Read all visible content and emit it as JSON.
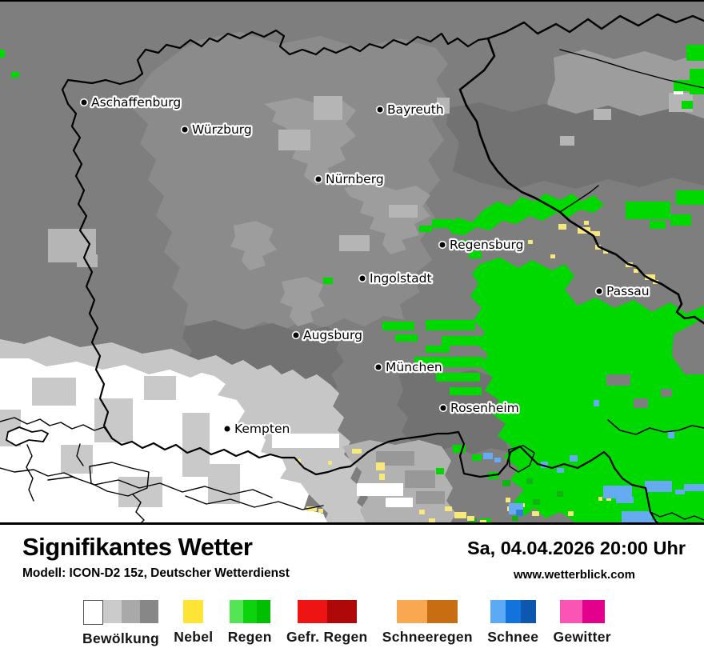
{
  "header": {
    "title": "Signifikantes Wetter",
    "model_line": "Modell: ICON-D2 15z, Deutscher Wetterdienst",
    "datetime": "Sa, 04.04.2026 20:00 Uhr",
    "website": "www.wetterblick.com"
  },
  "map": {
    "cities": [
      {
        "name": "Aschaffenburg"
      },
      {
        "name": "Würzburg"
      },
      {
        "name": "Bayreuth"
      },
      {
        "name": "Nürnberg"
      },
      {
        "name": "Regensburg"
      },
      {
        "name": "Ingolstadt"
      },
      {
        "name": "Passau"
      },
      {
        "name": "Augsburg"
      },
      {
        "name": "München"
      },
      {
        "name": "Rosenheim"
      },
      {
        "name": "Kempten"
      }
    ],
    "colors": {
      "cloud_light_to_dark": [
        "#ffffff",
        "#c7c7c7",
        "#a8a8a8",
        "#7e7e7e"
      ],
      "rain": "#00d900",
      "fog": "#f6e87a",
      "snow": "#66aaf2",
      "borders": "#000000"
    }
  },
  "legend": {
    "items": [
      {
        "label": "Bewölkung",
        "colors": [
          "#ffffff",
          "#cbcbcb",
          "#a9a9a9",
          "#878787"
        ]
      },
      {
        "label": "Nebel",
        "colors": [
          "#ffe435"
        ]
      },
      {
        "label": "Regen",
        "colors": [
          "#54e554",
          "#0cd30c",
          "#00be00"
        ]
      },
      {
        "label": "Gefr. Regen",
        "colors": [
          "#ee1414",
          "#ae0808"
        ]
      },
      {
        "label": "Schneeregen",
        "colors": [
          "#f9a750",
          "#c96d12"
        ]
      },
      {
        "label": "Schnee",
        "colors": [
          "#5ca9f6",
          "#1273dc",
          "#0e57ae"
        ]
      },
      {
        "label": "Gewitter",
        "colors": [
          "#fa55b4",
          "#e3008c"
        ]
      }
    ]
  }
}
